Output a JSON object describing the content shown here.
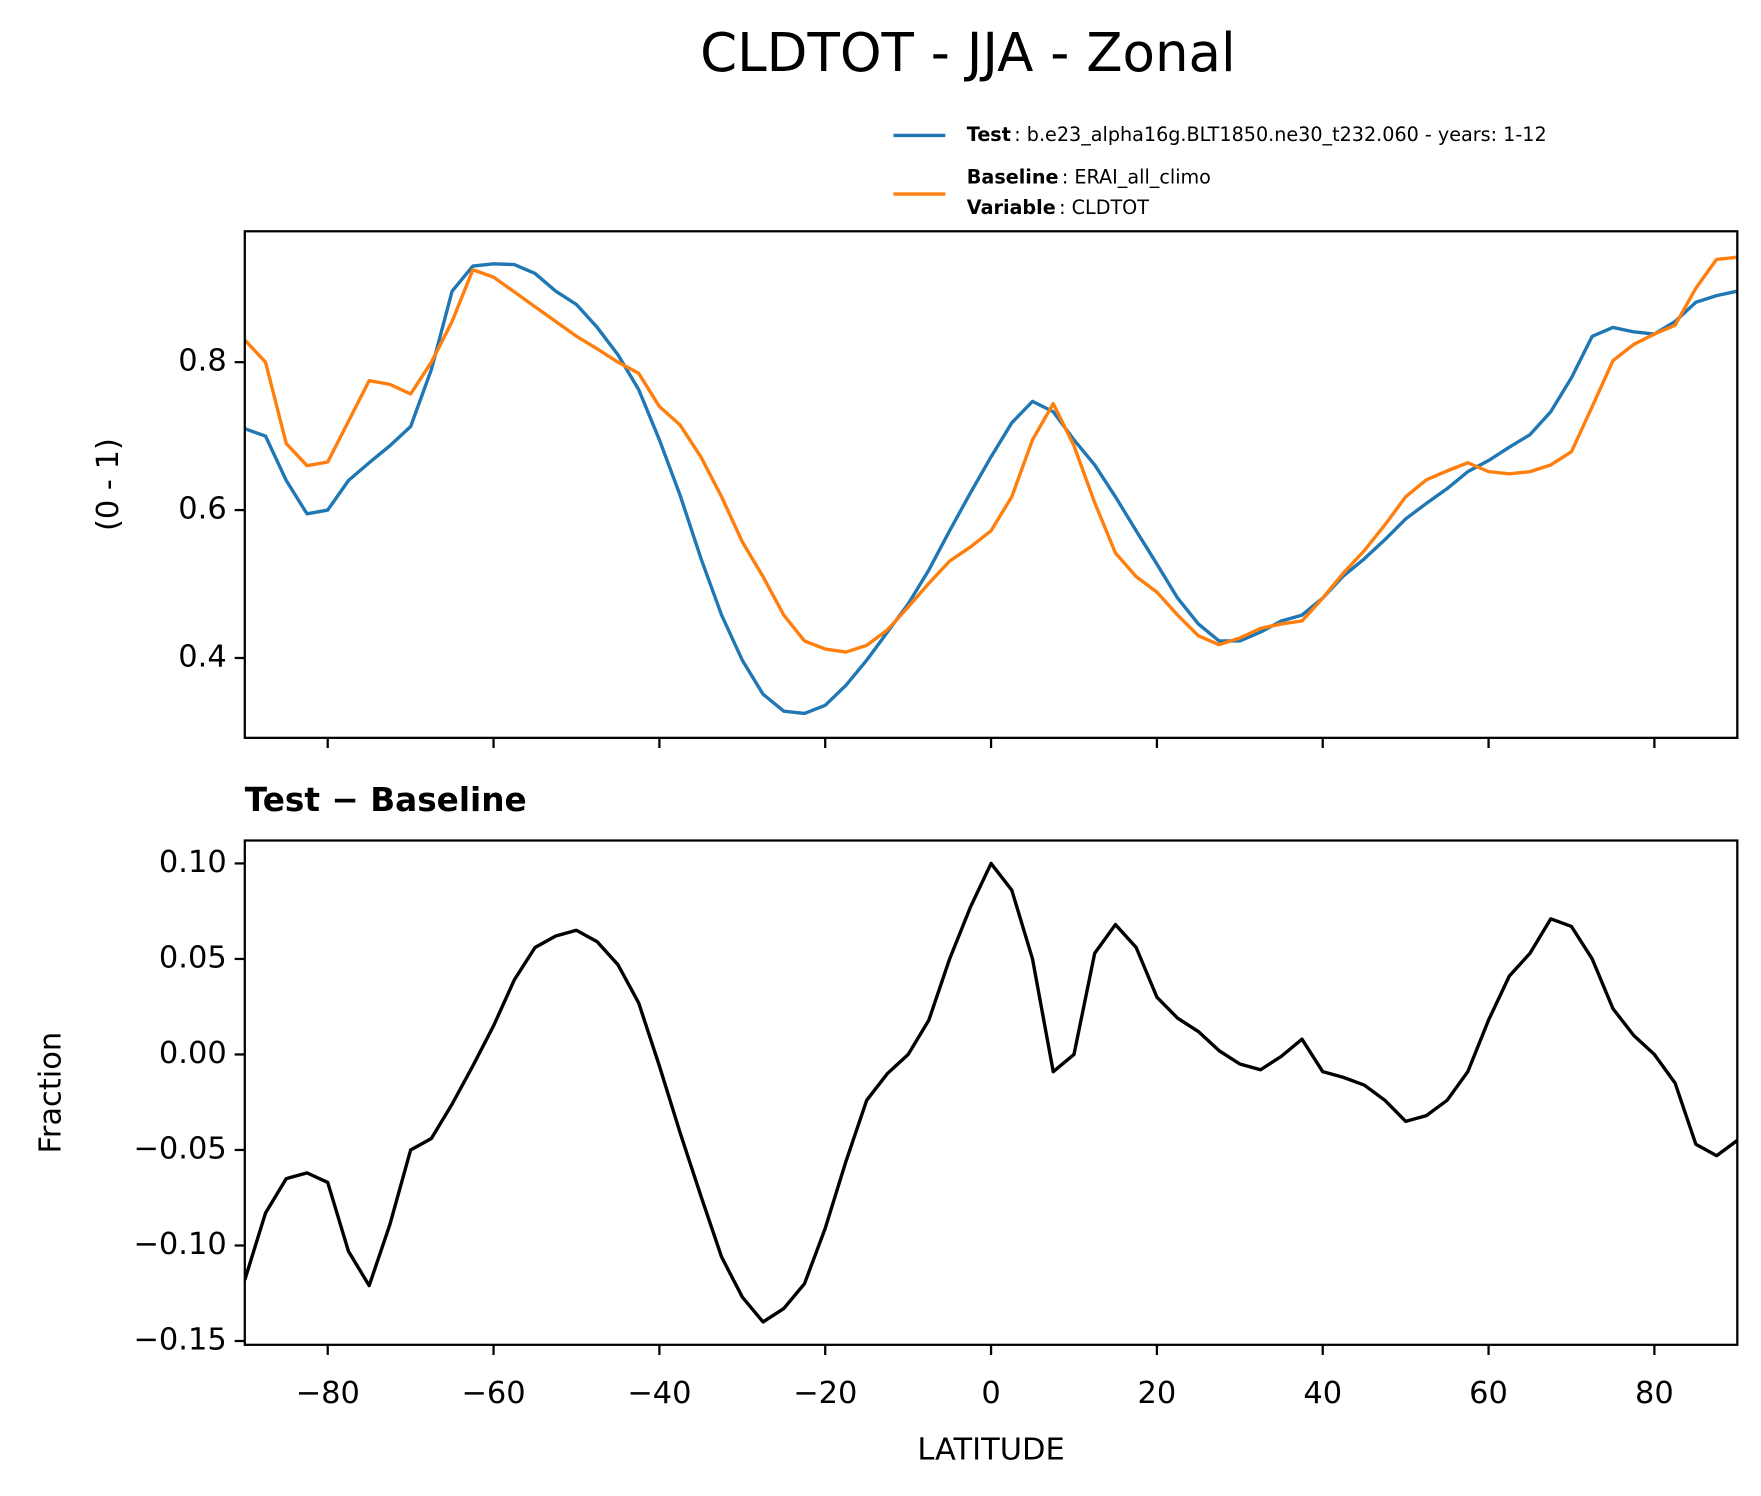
{
  "chart_data": [
    {
      "type": "line",
      "title": "CLDTOT - JJA - Zonal",
      "ylabel": "(0 - 1)",
      "grid": false,
      "xticklabels": false,
      "x": [
        -90,
        -87.5,
        -85,
        -82.5,
        -80,
        -77.5,
        -75,
        -72.5,
        -70,
        -67.5,
        -65,
        -62.5,
        -60,
        -57.5,
        -55,
        -52.5,
        -50,
        -47.5,
        -45,
        -42.5,
        -40,
        -37.5,
        -35,
        -32.5,
        -30,
        -27.5,
        -25,
        -22.5,
        -20,
        -17.5,
        -15,
        -12.5,
        -10,
        -7.5,
        -5,
        -2.5,
        0,
        2.5,
        5,
        7.5,
        10,
        12.5,
        15,
        17.5,
        20,
        22.5,
        25,
        27.5,
        30,
        32.5,
        35,
        37.5,
        40,
        42.5,
        45,
        47.5,
        50,
        52.5,
        55,
        57.5,
        60,
        62.5,
        65,
        67.5,
        70,
        72.5,
        75,
        77.5,
        80,
        82.5,
        85,
        87.5,
        90
      ],
      "xlim": [
        -90,
        90
      ],
      "xticks": [
        -80,
        -60,
        -40,
        -20,
        0,
        20,
        40,
        60,
        80
      ],
      "ylim": [
        0.292,
        0.977
      ],
      "yticks": [
        0.4,
        0.6,
        0.8
      ],
      "series": [
        {
          "name": "Test",
          "description": ": b.e23_alpha16g.BLT1850.ne30_t232.060 - years: 1-12",
          "color": "#1f77b4",
          "values": [
            0.71,
            0.7,
            0.64,
            0.595,
            0.6,
            0.64,
            0.664,
            0.687,
            0.713,
            0.79,
            0.896,
            0.93,
            0.933,
            0.932,
            0.92,
            0.896,
            0.878,
            0.847,
            0.81,
            0.763,
            0.695,
            0.62,
            0.535,
            0.458,
            0.397,
            0.351,
            0.328,
            0.325,
            0.336,
            0.363,
            0.397,
            0.435,
            0.473,
            0.519,
            0.572,
            0.623,
            0.672,
            0.718,
            0.747,
            0.733,
            0.695,
            0.661,
            0.618,
            0.572,
            0.527,
            0.481,
            0.446,
            0.423,
            0.423,
            0.435,
            0.45,
            0.458,
            0.481,
            0.511,
            0.534,
            0.56,
            0.588,
            0.609,
            0.629,
            0.652,
            0.667,
            0.685,
            0.702,
            0.733,
            0.779,
            0.835,
            0.847,
            0.841,
            0.838,
            0.855,
            0.881,
            0.89,
            0.896
          ]
        },
        {
          "name": "Baseline",
          "description": ": ERAI_all_climo",
          "color": "#ff7f0e",
          "values": [
            0.83,
            0.8,
            0.69,
            0.66,
            0.665,
            0.72,
            0.775,
            0.77,
            0.757,
            0.8,
            0.855,
            0.925,
            0.915,
            0.895,
            0.875,
            0.855,
            0.835,
            0.818,
            0.8,
            0.785,
            0.74,
            0.715,
            0.672,
            0.618,
            0.557,
            0.51,
            0.458,
            0.423,
            0.412,
            0.408,
            0.417,
            0.438,
            0.469,
            0.501,
            0.531,
            0.55,
            0.572,
            0.618,
            0.695,
            0.744,
            0.687,
            0.61,
            0.542,
            0.51,
            0.489,
            0.458,
            0.43,
            0.418,
            0.427,
            0.44,
            0.446,
            0.45,
            0.481,
            0.515,
            0.545,
            0.58,
            0.618,
            0.641,
            0.653,
            0.664,
            0.652,
            0.649,
            0.652,
            0.661,
            0.679,
            0.74,
            0.802,
            0.824,
            0.838,
            0.85,
            0.9,
            0.939,
            0.942
          ]
        }
      ],
      "legend_extra": {
        "name": "Variable",
        "description": ": CLDTOT"
      }
    },
    {
      "type": "line",
      "title": "Test − Baseline",
      "ylabel": "Fraction",
      "xlabel": "LATITUDE",
      "grid": false,
      "xticklabels": true,
      "x": [
        -90,
        -87.5,
        -85,
        -82.5,
        -80,
        -77.5,
        -75,
        -72.5,
        -70,
        -67.5,
        -65,
        -62.5,
        -60,
        -57.5,
        -55,
        -52.5,
        -50,
        -47.5,
        -45,
        -42.5,
        -40,
        -37.5,
        -35,
        -32.5,
        -30,
        -27.5,
        -25,
        -22.5,
        -20,
        -17.5,
        -15,
        -12.5,
        -10,
        -7.5,
        -5,
        -2.5,
        0,
        2.5,
        5,
        7.5,
        10,
        12.5,
        15,
        17.5,
        20,
        22.5,
        25,
        27.5,
        30,
        32.5,
        35,
        37.5,
        40,
        42.5,
        45,
        47.5,
        50,
        52.5,
        55,
        57.5,
        60,
        62.5,
        65,
        67.5,
        70,
        72.5,
        75,
        77.5,
        80,
        82.5,
        85,
        87.5,
        90
      ],
      "xlim": [
        -90,
        90
      ],
      "xticks": [
        {
          "value": -80,
          "label": "−80"
        },
        {
          "value": -60,
          "label": "−60"
        },
        {
          "value": -40,
          "label": "−40"
        },
        {
          "value": -20,
          "label": "−20"
        },
        0,
        20,
        40,
        60,
        80
      ],
      "ylim": [
        -0.152,
        0.112
      ],
      "yticks": [
        {
          "value": -0.15,
          "label": "−0.15"
        },
        {
          "value": -0.1,
          "label": "−0.10"
        },
        {
          "value": -0.05,
          "label": "−0.05"
        },
        {
          "value": 0,
          "label": "0.00"
        },
        {
          "value": 0.05,
          "label": "0.05"
        },
        {
          "value": 0.1,
          "label": "0.10"
        }
      ],
      "series": [
        {
          "color": "#000000",
          "values": [
            -0.118,
            -0.083,
            -0.065,
            -0.062,
            -0.067,
            -0.103,
            -0.121,
            -0.089,
            -0.05,
            -0.044,
            -0.026,
            -0.006,
            0.015,
            0.039,
            0.056,
            0.062,
            0.065,
            0.059,
            0.047,
            0.027,
            -0.006,
            -0.041,
            -0.074,
            -0.106,
            -0.127,
            -0.14,
            -0.133,
            -0.12,
            -0.091,
            -0.056,
            -0.024,
            -0.01,
            0,
            0.018,
            0.05,
            0.077,
            0.1,
            0.086,
            0.05,
            -0.009,
            0,
            0.053,
            0.068,
            0.056,
            0.03,
            0.019,
            0.012,
            0.002,
            -0.005,
            -0.008,
            -0.001,
            0.008,
            -0.009,
            -0.012,
            -0.016,
            -0.024,
            -0.035,
            -0.032,
            -0.024,
            -0.009,
            0.018,
            0.041,
            0.053,
            0.071,
            0.067,
            0.05,
            0.024,
            0.01,
            0,
            -0.015,
            -0.047,
            -0.053,
            -0.045
          ]
        }
      ]
    }
  ]
}
